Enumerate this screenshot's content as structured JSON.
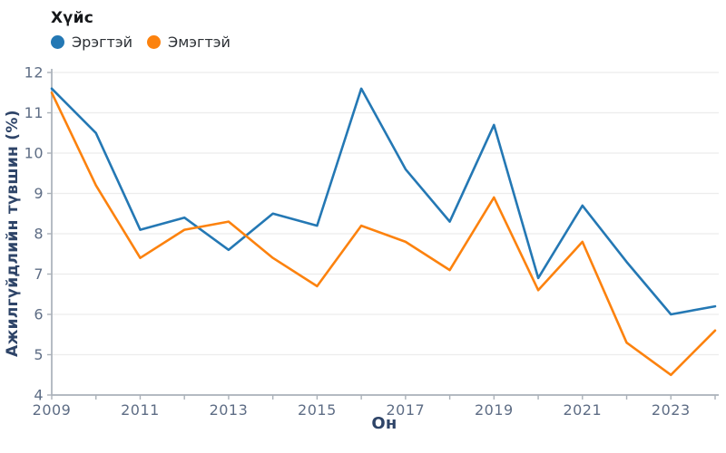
{
  "legend": {
    "title": "Хүйс",
    "items": [
      {
        "label": "Эрэгтэй",
        "color": "#2478b4"
      },
      {
        "label": "Эмэгтэй",
        "color": "#fc820e"
      }
    ]
  },
  "axes": {
    "x_title": "Он",
    "y_title": "Ажилгүйдлийн түвшин (%)"
  },
  "colors": {
    "grid": "#ececec",
    "axis": "#aab1b9",
    "tick_label": "#5e6d85",
    "axis_title": "#2e4468",
    "background": "#ffffff"
  },
  "chart_data": {
    "type": "line",
    "title": "",
    "xlabel": "Он",
    "ylabel": "Ажилгүйдлийн түвшин (%)",
    "x": [
      2009,
      2010,
      2011,
      2012,
      2013,
      2014,
      2015,
      2016,
      2017,
      2018,
      2019,
      2020,
      2021,
      2022,
      2023,
      2024
    ],
    "series": [
      {
        "name": "Эрэгтэй",
        "color": "#2478b4",
        "values": [
          11.6,
          10.5,
          8.1,
          8.4,
          7.6,
          8.5,
          8.2,
          11.6,
          9.6,
          8.3,
          10.7,
          6.9,
          8.7,
          7.3,
          6.0,
          6.2
        ]
      },
      {
        "name": "Эмэгтэй",
        "color": "#fc820e",
        "values": [
          11.5,
          9.2,
          7.4,
          8.1,
          8.3,
          7.4,
          6.7,
          8.2,
          7.8,
          7.1,
          8.9,
          6.6,
          7.8,
          5.3,
          4.5,
          5.6
        ]
      }
    ],
    "ylim": [
      4,
      12
    ],
    "y_ticks": [
      4,
      5,
      6,
      7,
      8,
      9,
      10,
      11,
      12
    ],
    "x_tick_labels": [
      "2009",
      "2011",
      "2013",
      "2015",
      "2017",
      "2019",
      "2021",
      "2023"
    ],
    "grid": "horizontal",
    "legend_position": "top-left",
    "legend_title": "Хүйс"
  }
}
